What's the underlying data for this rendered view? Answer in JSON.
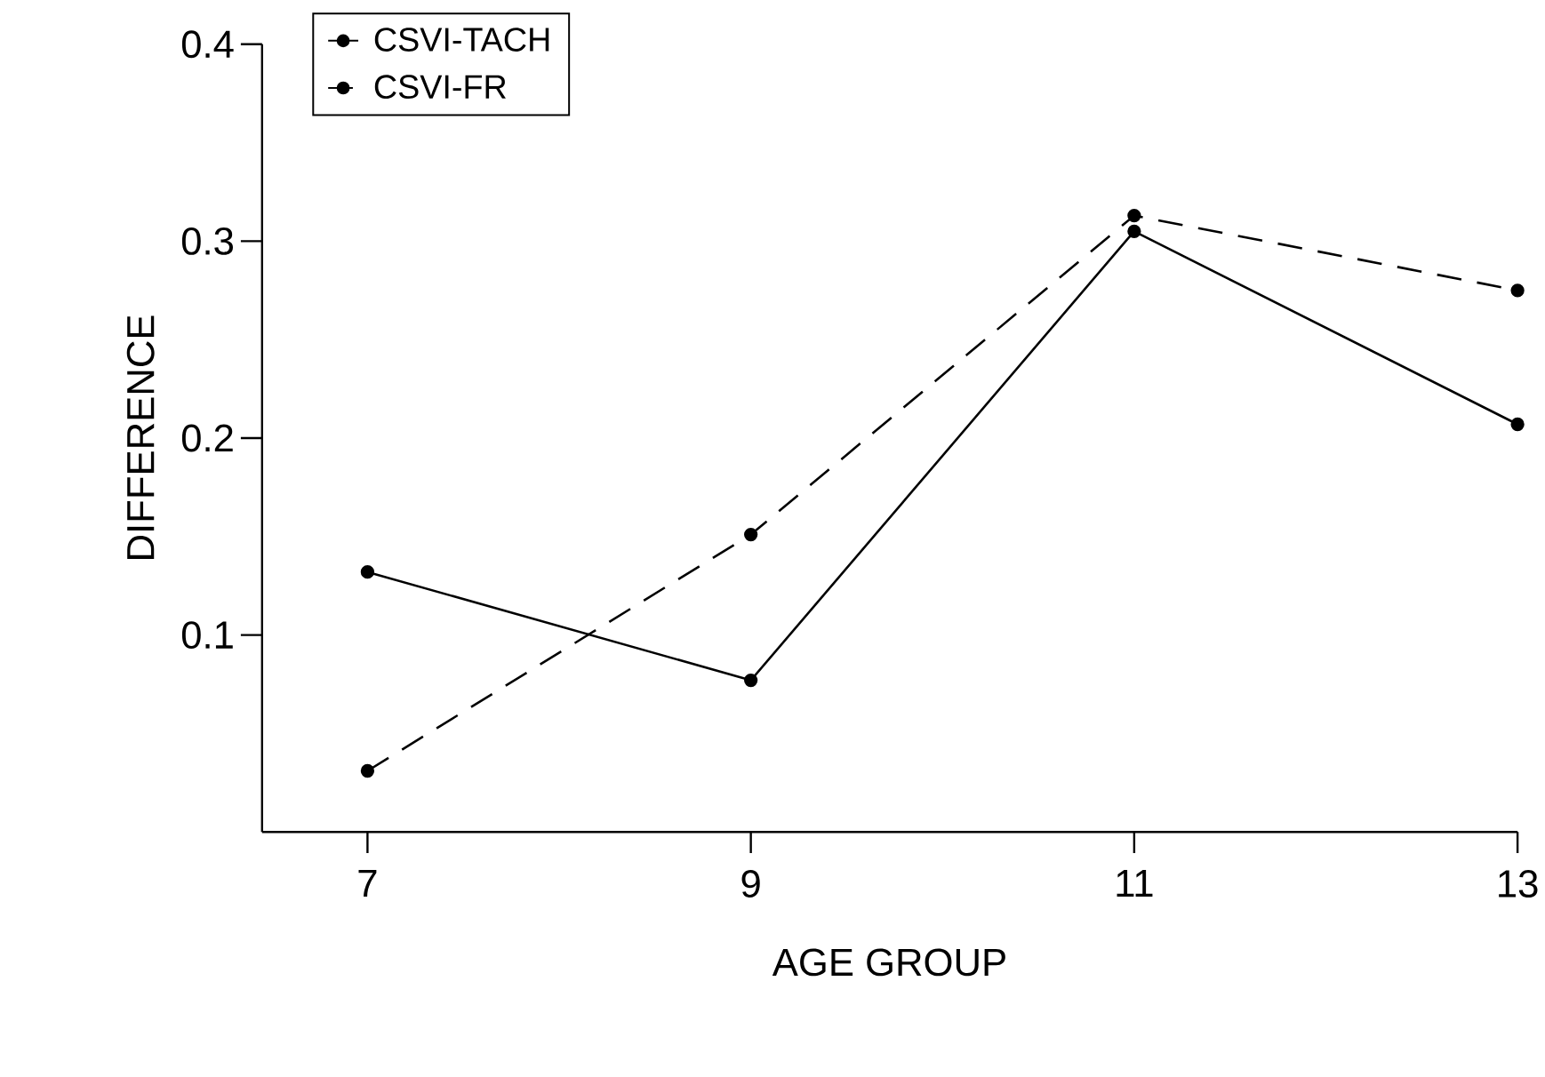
{
  "chart_data": {
    "type": "line",
    "xlabel": "AGE GROUP",
    "ylabel": "DIFFERENCE",
    "x": [
      7,
      9,
      11,
      13
    ],
    "series": [
      {
        "name": "CSVI-TACH",
        "color": "#000000",
        "line_style": "solid",
        "values": [
          0.132,
          0.077,
          0.305,
          0.207
        ]
      },
      {
        "name": "CSVI-FR",
        "color": "#000000",
        "line_style": "dashed",
        "values": [
          0.031,
          0.151,
          0.313,
          0.275
        ]
      }
    ],
    "xlim": [
      6.45,
      13
    ],
    "ylim": [
      0,
      0.4
    ],
    "xticks": [
      7,
      9,
      11,
      13
    ],
    "yticks": [
      {
        "value": 0.1,
        "label": "0.1"
      },
      {
        "value": 0.2,
        "label": "0.2"
      },
      {
        "value": 0.3,
        "label": "0.3"
      },
      {
        "value": 0.4,
        "label": "0.4"
      }
    ],
    "marker": "circle",
    "grid": false,
    "legend": "top left"
  }
}
